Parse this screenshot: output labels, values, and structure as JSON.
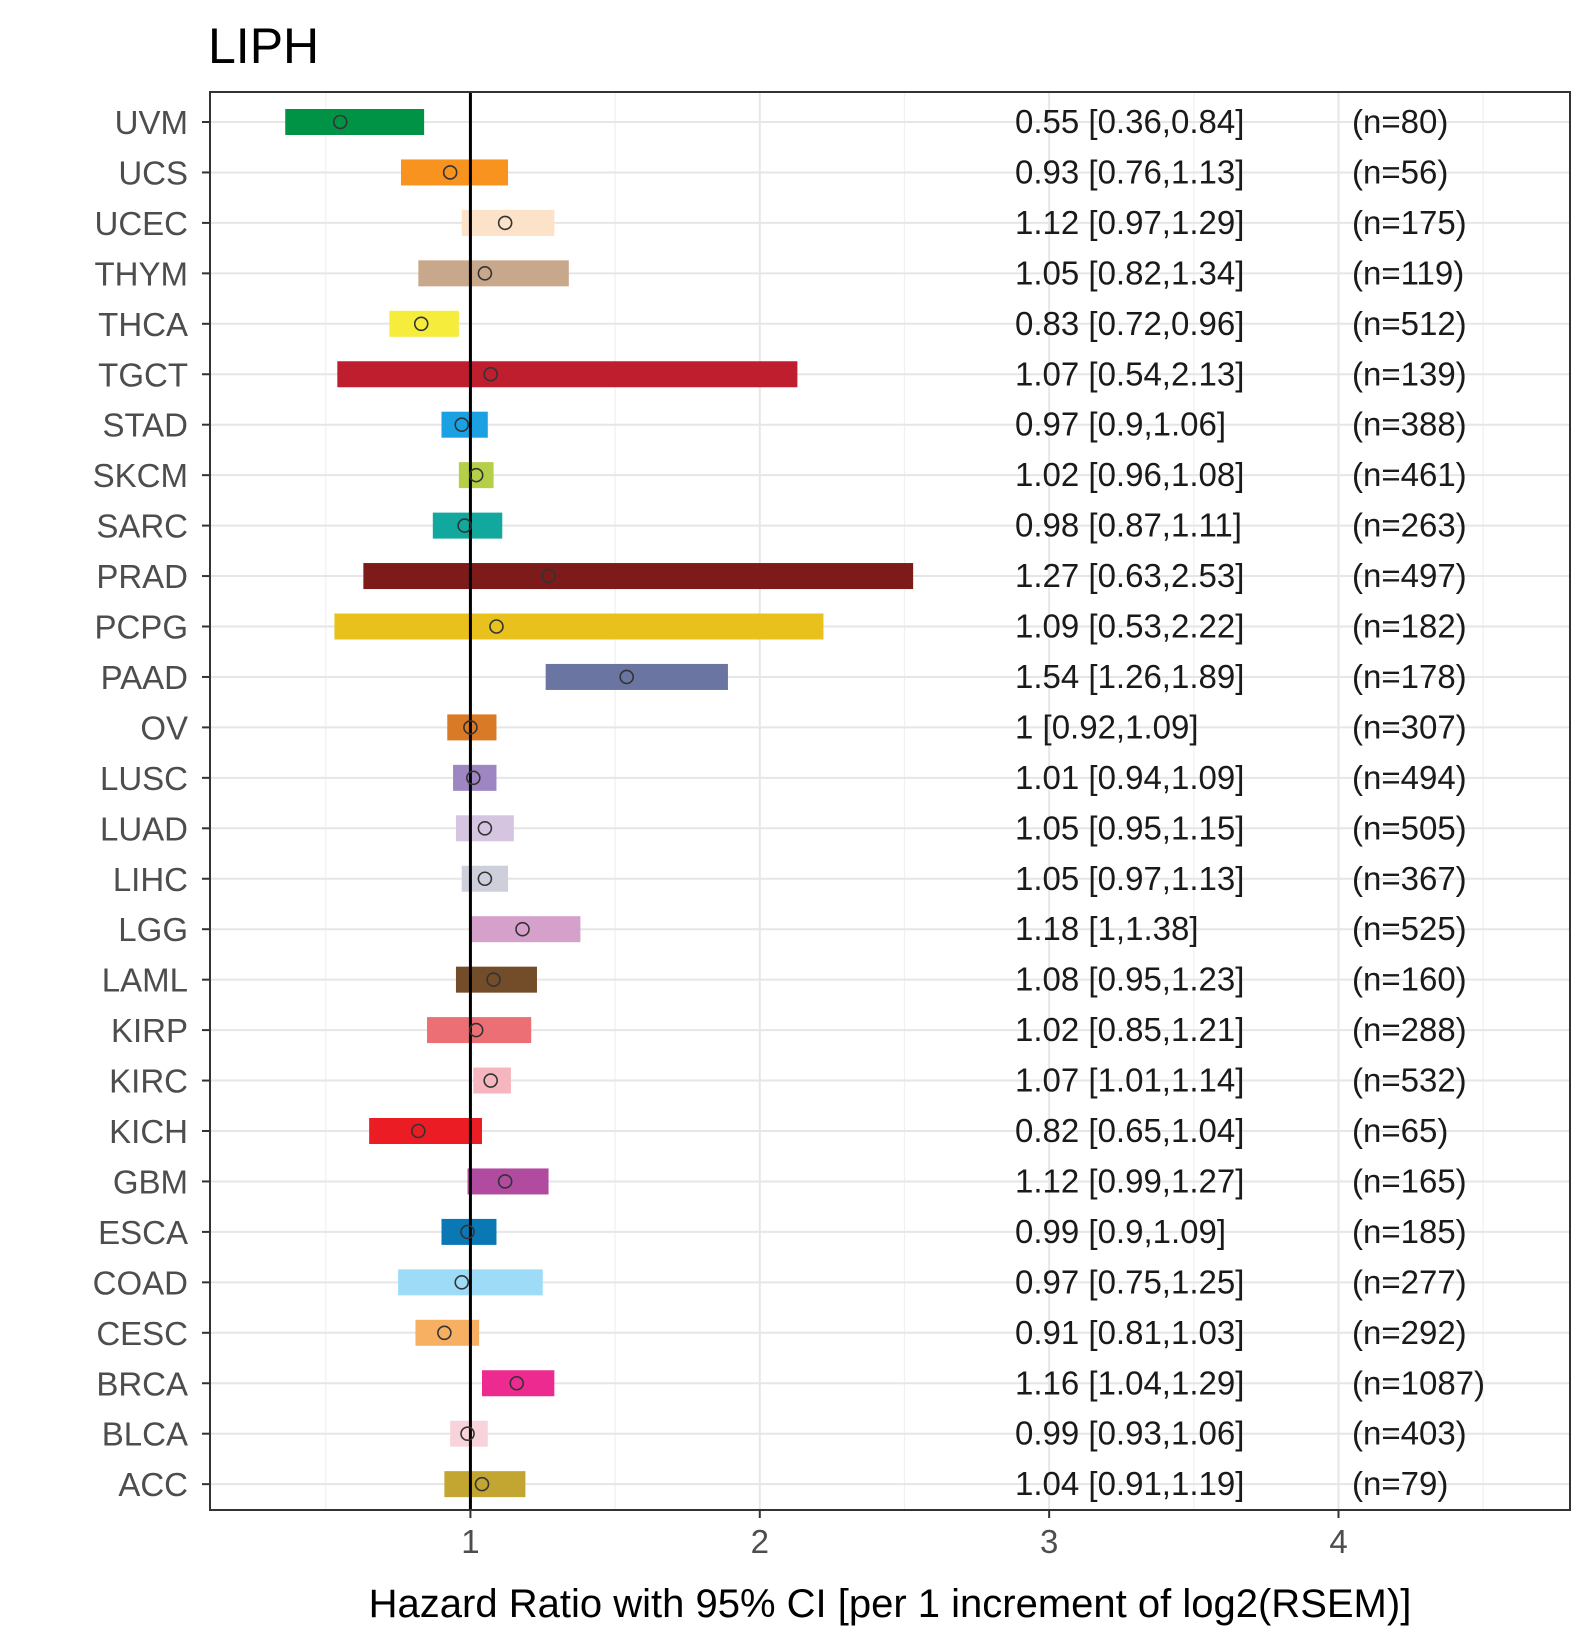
{
  "chart_data": {
    "type": "forest",
    "title": "LIPH",
    "xlabel": "Hazard Ratio with 95% CI [per 1 increment of log2(RSEM)]",
    "ylabel": "",
    "xlim": [
      0.1,
      4.8
    ],
    "x_ticks": [
      1,
      2,
      3,
      4
    ],
    "x_tick_labels": [
      "1",
      "2",
      "3",
      "4"
    ],
    "reference_line": 1,
    "grid": true,
    "rows": [
      {
        "label": "UVM",
        "hr": 0.55,
        "lower": 0.36,
        "upper": 0.84,
        "ci_text": "0.55 [0.36,0.84]",
        "n_text": "(n=80)",
        "color": "#009245"
      },
      {
        "label": "UCS",
        "hr": 0.93,
        "lower": 0.76,
        "upper": 1.13,
        "ci_text": "0.93 [0.76,1.13]",
        "n_text": "(n=56)",
        "color": "#F7931E"
      },
      {
        "label": "UCEC",
        "hr": 1.12,
        "lower": 0.97,
        "upper": 1.29,
        "ci_text": "1.12 [0.97,1.29]",
        "n_text": "(n=175)",
        "color": "#FBE2C8"
      },
      {
        "label": "THYM",
        "hr": 1.05,
        "lower": 0.82,
        "upper": 1.34,
        "ci_text": "1.05 [0.82,1.34]",
        "n_text": "(n=119)",
        "color": "#C8A88A"
      },
      {
        "label": "THCA",
        "hr": 0.83,
        "lower": 0.72,
        "upper": 0.96,
        "ci_text": "0.83 [0.72,0.96]",
        "n_text": "(n=512)",
        "color": "#F6EC3C"
      },
      {
        "label": "TGCT",
        "hr": 1.07,
        "lower": 0.54,
        "upper": 2.13,
        "ci_text": "1.07 [0.54,2.13]",
        "n_text": "(n=139)",
        "color": "#BE1E2D"
      },
      {
        "label": "STAD",
        "hr": 0.97,
        "lower": 0.9,
        "upper": 1.06,
        "ci_text": "0.97 [0.9,1.06]",
        "n_text": "(n=388)",
        "color": "#1BA1E2"
      },
      {
        "label": "SKCM",
        "hr": 1.02,
        "lower": 0.96,
        "upper": 1.08,
        "ci_text": "1.02 [0.96,1.08]",
        "n_text": "(n=461)",
        "color": "#B5CF49"
      },
      {
        "label": "SARC",
        "hr": 0.98,
        "lower": 0.87,
        "upper": 1.11,
        "ci_text": "0.98 [0.87,1.11]",
        "n_text": "(n=263)",
        "color": "#12A89D"
      },
      {
        "label": "PRAD",
        "hr": 1.27,
        "lower": 0.63,
        "upper": 2.53,
        "ci_text": "1.27 [0.63,2.53]",
        "n_text": "(n=497)",
        "color": "#7D1A1A"
      },
      {
        "label": "PCPG",
        "hr": 1.09,
        "lower": 0.53,
        "upper": 2.22,
        "ci_text": "1.09 [0.53,2.22]",
        "n_text": "(n=182)",
        "color": "#E8C11C"
      },
      {
        "label": "PAAD",
        "hr": 1.54,
        "lower": 1.26,
        "upper": 1.89,
        "ci_text": "1.54 [1.26,1.89]",
        "n_text": "(n=178)",
        "color": "#6A76A1"
      },
      {
        "label": "OV",
        "hr": 1,
        "lower": 0.92,
        "upper": 1.09,
        "ci_text": "1 [0.92,1.09]",
        "n_text": "(n=307)",
        "color": "#D87A26"
      },
      {
        "label": "LUSC",
        "hr": 1.01,
        "lower": 0.94,
        "upper": 1.09,
        "ci_text": "1.01 [0.94,1.09]",
        "n_text": "(n=494)",
        "color": "#9D86C1"
      },
      {
        "label": "LUAD",
        "hr": 1.05,
        "lower": 0.95,
        "upper": 1.15,
        "ci_text": "1.05 [0.95,1.15]",
        "n_text": "(n=505)",
        "color": "#D5C5E0"
      },
      {
        "label": "LIHC",
        "hr": 1.05,
        "lower": 0.97,
        "upper": 1.13,
        "ci_text": "1.05 [0.97,1.13]",
        "n_text": "(n=367)",
        "color": "#CDCFDB"
      },
      {
        "label": "LGG",
        "hr": 1.18,
        "lower": 1,
        "upper": 1.38,
        "ci_text": "1.18 [1,1.38]",
        "n_text": "(n=525)",
        "color": "#D5A1CB"
      },
      {
        "label": "LAML",
        "hr": 1.08,
        "lower": 0.95,
        "upper": 1.23,
        "ci_text": "1.08 [0.95,1.23]",
        "n_text": "(n=160)",
        "color": "#734C2A"
      },
      {
        "label": "KIRP",
        "hr": 1.02,
        "lower": 0.85,
        "upper": 1.21,
        "ci_text": "1.02 [0.85,1.21]",
        "n_text": "(n=288)",
        "color": "#EB6F75"
      },
      {
        "label": "KIRC",
        "hr": 1.07,
        "lower": 1.01,
        "upper": 1.14,
        "ci_text": "1.07 [1.01,1.14]",
        "n_text": "(n=532)",
        "color": "#F6B6BF"
      },
      {
        "label": "KICH",
        "hr": 0.82,
        "lower": 0.65,
        "upper": 1.04,
        "ci_text": "0.82 [0.65,1.04]",
        "n_text": "(n=65)",
        "color": "#EC1C24"
      },
      {
        "label": "GBM",
        "hr": 1.12,
        "lower": 0.99,
        "upper": 1.27,
        "ci_text": "1.12 [0.99,1.27]",
        "n_text": "(n=165)",
        "color": "#B04B9F"
      },
      {
        "label": "ESCA",
        "hr": 0.99,
        "lower": 0.9,
        "upper": 1.09,
        "ci_text": "0.99 [0.9,1.09]",
        "n_text": "(n=185)",
        "color": "#0A78B4"
      },
      {
        "label": "COAD",
        "hr": 0.97,
        "lower": 0.75,
        "upper": 1.25,
        "ci_text": "0.97 [0.75,1.25]",
        "n_text": "(n=277)",
        "color": "#9EDBF7"
      },
      {
        "label": "CESC",
        "hr": 0.91,
        "lower": 0.81,
        "upper": 1.03,
        "ci_text": "0.91 [0.81,1.03]",
        "n_text": "(n=292)",
        "color": "#F7B062"
      },
      {
        "label": "BRCA",
        "hr": 1.16,
        "lower": 1.04,
        "upper": 1.29,
        "ci_text": "1.16 [1.04,1.29]",
        "n_text": "(n=1087)",
        "color": "#EC2A90"
      },
      {
        "label": "BLCA",
        "hr": 0.99,
        "lower": 0.93,
        "upper": 1.06,
        "ci_text": "0.99 [0.93,1.06]",
        "n_text": "(n=403)",
        "color": "#F9D3DC"
      },
      {
        "label": "ACC",
        "hr": 1.04,
        "lower": 0.91,
        "upper": 1.19,
        "ci_text": "1.04 [0.91,1.19]",
        "n_text": "(n=79)",
        "color": "#C2A631"
      }
    ]
  }
}
